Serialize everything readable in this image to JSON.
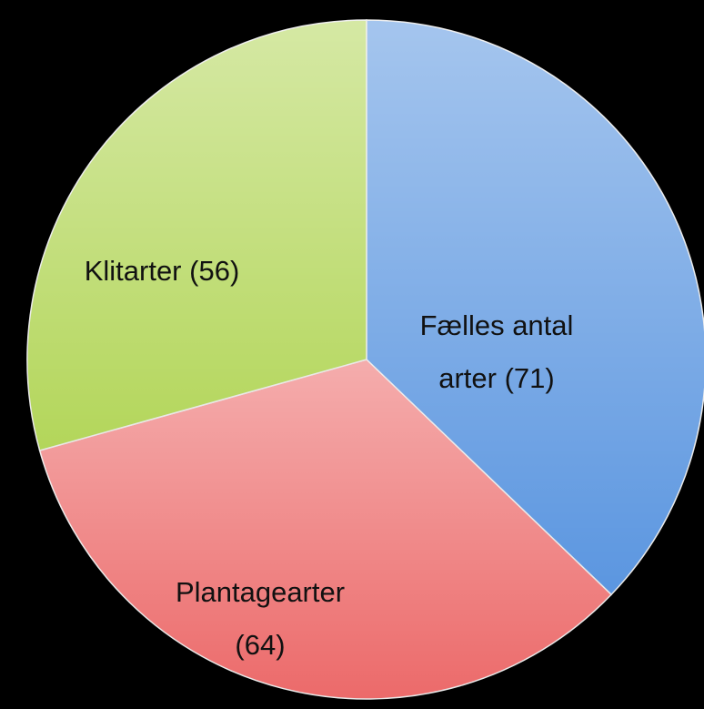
{
  "chart_data": {
    "type": "pie",
    "categories": [
      "Fælles antal arter",
      "Plantagearter",
      "Klitarter"
    ],
    "values": [
      71,
      64,
      56
    ],
    "value_labels": [
      "(71)",
      "(64)",
      "(56)"
    ],
    "colors": [
      "#5b96e0",
      "#ec6a6a",
      "#b3d65a"
    ]
  }
}
